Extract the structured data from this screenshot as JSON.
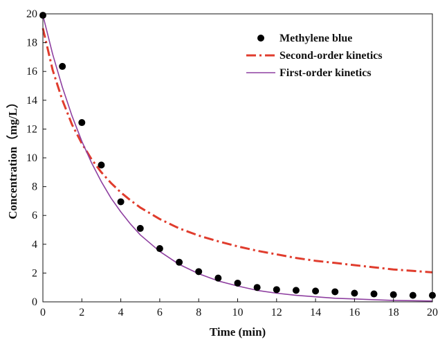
{
  "chart_data": {
    "type": "scatter",
    "xlabel": "Time (min)",
    "ylabel": "Concentration（mg/L）",
    "xlim": [
      0,
      20
    ],
    "ylim": [
      0,
      20
    ],
    "x_ticks": [
      0,
      2,
      4,
      6,
      8,
      10,
      12,
      14,
      16,
      18,
      20
    ],
    "y_ticks": [
      0,
      2,
      4,
      6,
      8,
      10,
      12,
      14,
      16,
      18,
      20
    ],
    "grid": false,
    "legend_position": "top-right",
    "series": [
      {
        "name": "Methylene blue",
        "kind": "scatter",
        "color": "#000000",
        "x": [
          0,
          1,
          2,
          3,
          4,
          5,
          6,
          7,
          8,
          9,
          10,
          11,
          12,
          13,
          14,
          15,
          16,
          17,
          18,
          19,
          20
        ],
        "y": [
          19.9,
          16.35,
          12.45,
          9.5,
          6.95,
          5.1,
          3.7,
          2.75,
          2.1,
          1.65,
          1.3,
          1.0,
          0.85,
          0.8,
          0.75,
          0.7,
          0.6,
          0.55,
          0.5,
          0.45,
          0.45
        ]
      },
      {
        "name": "Second-order kinetics",
        "kind": "line",
        "style": "dash-dot",
        "color": "#e03c2d",
        "x": [
          0,
          0.5,
          1,
          1.5,
          2,
          2.5,
          3,
          3.5,
          4,
          4.5,
          5,
          6,
          7,
          8,
          9,
          10,
          11,
          12,
          13,
          14,
          15,
          16,
          17,
          18,
          19,
          20
        ],
        "y": [
          19.0,
          16.1,
          14.0,
          12.3,
          11.0,
          9.9,
          9.0,
          8.25,
          7.6,
          7.05,
          6.55,
          5.75,
          5.1,
          4.6,
          4.2,
          3.85,
          3.55,
          3.3,
          3.05,
          2.85,
          2.7,
          2.55,
          2.4,
          2.25,
          2.15,
          2.05
        ]
      },
      {
        "name": "First-order kinetics",
        "kind": "line",
        "style": "solid",
        "color": "#8e3fa0",
        "x": [
          0,
          0.5,
          1,
          1.5,
          2,
          2.5,
          3,
          3.5,
          4,
          4.5,
          5,
          6,
          7,
          8,
          9,
          10,
          11,
          12,
          13,
          14,
          15,
          16,
          17,
          18,
          19,
          20
        ],
        "y": [
          19.9,
          17.2,
          14.9,
          12.9,
          11.15,
          9.65,
          8.35,
          7.2,
          6.25,
          5.4,
          4.65,
          3.5,
          2.6,
          1.95,
          1.45,
          1.1,
          0.8,
          0.6,
          0.45,
          0.35,
          0.25,
          0.2,
          0.15,
          0.1,
          0.08,
          0.06
        ]
      }
    ]
  }
}
